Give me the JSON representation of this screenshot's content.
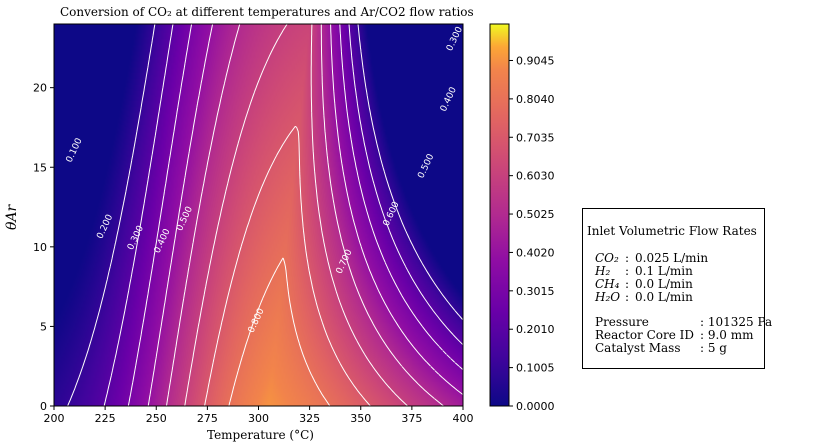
{
  "chart_data": {
    "type": "contour",
    "title": "Conversion of CO₂ at different temperatures and Ar/CO2 flow ratios",
    "xlabel": "Temperature (°C)",
    "ylabel": "θAr",
    "xlim": [
      200,
      400
    ],
    "ylim": [
      0,
      24
    ],
    "x_ticks": [
      "200",
      "225",
      "250",
      "275",
      "300",
      "325",
      "350",
      "375",
      "400"
    ],
    "y_ticks": [
      "0",
      "5",
      "10",
      "15",
      "20"
    ],
    "colorbar_ticks": [
      "0.0000",
      "0.1005",
      "0.2010",
      "0.3015",
      "0.4020",
      "0.5025",
      "0.6030",
      "0.7035",
      "0.8040",
      "0.9045"
    ],
    "colorbar_range": [
      0.0,
      1.0
    ],
    "colormap": "plasma",
    "contour_levels": [
      "0.100",
      "0.200",
      "0.300",
      "0.400",
      "0.500",
      "0.600",
      "0.700",
      "0.800"
    ],
    "contour_labels": [
      {
        "text": "0.100",
        "x": 211,
        "y": 16.0
      },
      {
        "text": "0.200",
        "x": 226,
        "y": 11.2
      },
      {
        "text": "0.300",
        "x": 241,
        "y": 10.5
      },
      {
        "text": "0.400",
        "x": 254,
        "y": 10.3
      },
      {
        "text": "0.500",
        "x": 265,
        "y": 11.7
      },
      {
        "text": "0.500",
        "x": 383,
        "y": 15.0
      },
      {
        "text": "0.600",
        "x": 366,
        "y": 12.0
      },
      {
        "text": "0.700",
        "x": 343,
        "y": 9.0
      },
      {
        "text": "0.800",
        "x": 300,
        "y": 5.3
      },
      {
        "text": "0.400",
        "x": 394,
        "y": 19.2
      },
      {
        "text": "0.300",
        "x": 397,
        "y": 23.0
      }
    ]
  },
  "info_box": {
    "title": "Inlet Volumetric Flow Rates",
    "gases": [
      {
        "name": "CO₂",
        "value": "0.025  L/min"
      },
      {
        "name": "H₂",
        "value": "0.1  L/min"
      },
      {
        "name": "CH₄",
        "value": "0.0  L/min"
      },
      {
        "name": "H₂O",
        "value": "0.0 L/min"
      }
    ],
    "conditions": [
      {
        "name": "Pressure",
        "value": ": 101325 Pa"
      },
      {
        "name": "Reactor Core ID",
        "value": ": 9.0 mm"
      },
      {
        "name": "Catalyst Mass",
        "value": ": 5 g"
      }
    ]
  }
}
